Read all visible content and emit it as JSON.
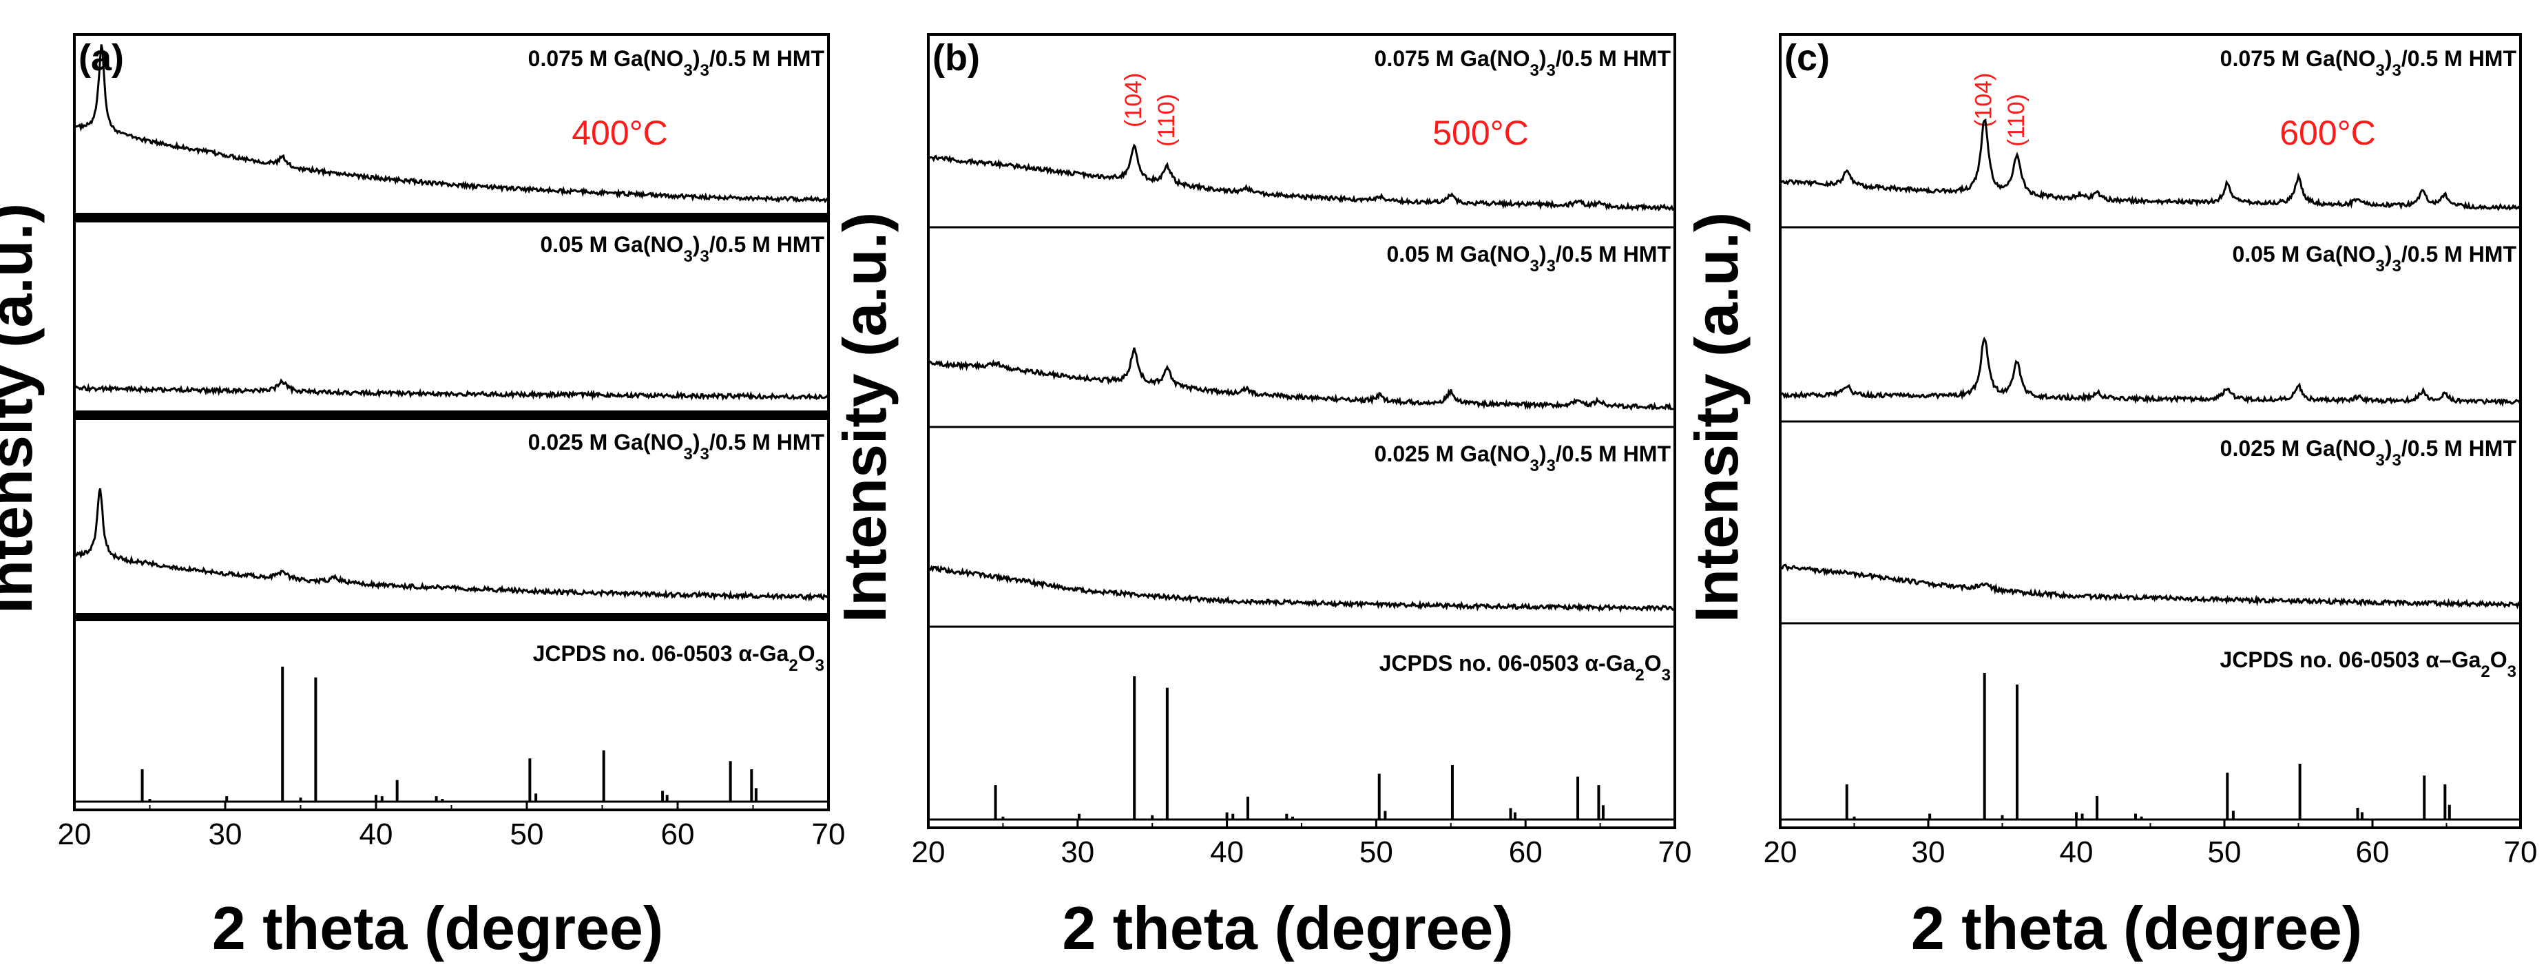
{
  "chart_data": [
    {
      "type": "line",
      "panel_label": "(a)",
      "temperature": "400°C",
      "xlabel": "2 theta (degree)",
      "ylabel": "Intensity (a.u.)",
      "xlim": [
        20,
        70
      ],
      "xticks": [
        "20",
        "30",
        "40",
        "50",
        "60",
        "70"
      ],
      "miller_labels": [],
      "series": [
        {
          "name": "0.075 M Ga(NO3)3/0.5 M HMT",
          "label_text": {
            "a": "0.075 M Ga(NO",
            "b": "3",
            "c": ")",
            "d": "3",
            "e": "/0.5 M HMT"
          },
          "base": [
            [
              20,
              0.68
            ],
            [
              22,
              0.65
            ],
            [
              25,
              0.56
            ],
            [
              30,
              0.44
            ],
            [
              35,
              0.32
            ],
            [
              40,
              0.24
            ],
            [
              45,
              0.18
            ],
            [
              50,
              0.14
            ],
            [
              55,
              0.11
            ],
            [
              60,
              0.08
            ],
            [
              65,
              0.06
            ],
            [
              70,
              0.05
            ]
          ],
          "peaks": [
            [
              21.8,
              0.75,
              0.22
            ],
            [
              33.8,
              0.08,
              0.25
            ]
          ]
        },
        {
          "name": "0.05 M Ga(NO3)3/0.5 M HMT",
          "label_text": {
            "a": "0.05 M Ga(NO",
            "b": "3",
            "c": ")",
            "d": "3",
            "e": "/0.5 M HMT"
          },
          "base": [
            [
              20,
              0.12
            ],
            [
              30,
              0.1
            ],
            [
              40,
              0.08
            ],
            [
              50,
              0.07
            ],
            [
              60,
              0.06
            ],
            [
              70,
              0.05
            ]
          ],
          "peaks": [
            [
              33.8,
              0.08,
              0.4
            ]
          ]
        },
        {
          "name": "0.025 M Ga(NO3)3/0.5 M HMT",
          "label_text": {
            "a": "0.025 M Ga(NO",
            "b": "3",
            "c": ")",
            "d": "3",
            "e": "/0.5 M HMT"
          },
          "base": [
            [
              20,
              0.4
            ],
            [
              22,
              0.38
            ],
            [
              25,
              0.33
            ],
            [
              30,
              0.25
            ],
            [
              35,
              0.2
            ],
            [
              40,
              0.16
            ],
            [
              50,
              0.11
            ],
            [
              60,
              0.08
            ],
            [
              70,
              0.06
            ]
          ],
          "peaks": [
            [
              21.7,
              0.55,
              0.22
            ],
            [
              33.8,
              0.06,
              0.3
            ],
            [
              37.3,
              0.04,
              0.3
            ]
          ]
        },
        {
          "name": "JCPDS no. 06-0503 α-Ga2O3",
          "label_text": {
            "a": "JCPDS no. 06-0503 α-Ga",
            "b": "2",
            "c": "O",
            "d": "3",
            "e": ""
          },
          "type": "stick",
          "sticks": [
            [
              24.5,
              0.24
            ],
            [
              25.0,
              0.02
            ],
            [
              30.1,
              0.04
            ],
            [
              33.8,
              1.0
            ],
            [
              35.0,
              0.03
            ],
            [
              36.0,
              0.92
            ],
            [
              40.0,
              0.05
            ],
            [
              40.4,
              0.04
            ],
            [
              41.4,
              0.16
            ],
            [
              44.0,
              0.04
            ],
            [
              44.4,
              0.02
            ],
            [
              50.2,
              0.32
            ],
            [
              50.6,
              0.06
            ],
            [
              55.1,
              0.38
            ],
            [
              59.0,
              0.08
            ],
            [
              59.3,
              0.05
            ],
            [
              63.5,
              0.3
            ],
            [
              64.9,
              0.24
            ],
            [
              65.2,
              0.1
            ]
          ]
        }
      ]
    },
    {
      "type": "line",
      "panel_label": "(b)",
      "temperature": "500°C",
      "xlabel": "2 theta (degree)",
      "ylabel": "Intensity (a.u.)",
      "xlim": [
        20,
        70
      ],
      "xticks": [
        "20",
        "30",
        "40",
        "50",
        "60",
        "70"
      ],
      "miller_labels": [
        {
          "text": "(104)",
          "x": 33.8
        },
        {
          "text": "(110)",
          "x": 36.0
        }
      ],
      "series": [
        {
          "name": "0.075 M Ga(NO3)3/0.5 M HMT",
          "label_text": {
            "a": "0.075 M Ga(NO",
            "b": "3",
            "c": ")",
            "d": "3",
            "e": "/0.5 M HMT"
          },
          "base": [
            [
              20,
              0.48
            ],
            [
              25,
              0.42
            ],
            [
              30,
              0.34
            ],
            [
              35,
              0.27
            ],
            [
              40,
              0.2
            ],
            [
              45,
              0.15
            ],
            [
              50,
              0.12
            ],
            [
              55,
              0.1
            ],
            [
              60,
              0.09
            ],
            [
              65,
              0.07
            ],
            [
              70,
              0.06
            ]
          ],
          "peaks": [
            [
              33.8,
              0.28,
              0.3
            ],
            [
              36.0,
              0.15,
              0.3
            ],
            [
              41.3,
              0.04,
              0.3
            ],
            [
              50.2,
              0.04,
              0.3
            ],
            [
              55.0,
              0.06,
              0.3
            ],
            [
              63.5,
              0.04,
              0.3
            ],
            [
              64.9,
              0.03,
              0.3
            ]
          ]
        },
        {
          "name": "0.05 M Ga(NO3)3/0.5 M HMT",
          "label_text": {
            "a": "0.05 M Ga(NO",
            "b": "3",
            "c": ")",
            "d": "3",
            "e": "/0.5 M HMT"
          },
          "base": [
            [
              20,
              0.42
            ],
            [
              25,
              0.38
            ],
            [
              30,
              0.3
            ],
            [
              35,
              0.24
            ],
            [
              40,
              0.18
            ],
            [
              45,
              0.14
            ],
            [
              50,
              0.11
            ],
            [
              55,
              0.09
            ],
            [
              60,
              0.08
            ],
            [
              65,
              0.07
            ],
            [
              70,
              0.06
            ]
          ],
          "peaks": [
            [
              24.5,
              0.04,
              0.4
            ],
            [
              33.8,
              0.28,
              0.3
            ],
            [
              36.0,
              0.15,
              0.3
            ],
            [
              41.3,
              0.04,
              0.3
            ],
            [
              50.2,
              0.05,
              0.3
            ],
            [
              55.0,
              0.1,
              0.3
            ],
            [
              63.5,
              0.05,
              0.3
            ],
            [
              64.9,
              0.04,
              0.3
            ]
          ]
        },
        {
          "name": "0.025 M Ga(NO3)3/0.5 M HMT",
          "label_text": {
            "a": "0.025 M Ga(NO",
            "b": "3",
            "c": ")",
            "d": "3",
            "e": "/0.5 M HMT"
          },
          "base": [
            [
              20,
              0.38
            ],
            [
              25,
              0.3
            ],
            [
              30,
              0.2
            ],
            [
              35,
              0.15
            ],
            [
              40,
              0.11
            ],
            [
              50,
              0.08
            ],
            [
              60,
              0.06
            ],
            [
              70,
              0.05
            ]
          ],
          "peaks": []
        },
        {
          "name": "JCPDS no. 06-0503 α-Ga2O3",
          "label_text": {
            "a": "JCPDS no. 06-0503 α-Ga",
            "b": "2",
            "c": "O",
            "d": "3",
            "e": ""
          },
          "type": "stick",
          "sticks": [
            [
              24.5,
              0.24
            ],
            [
              25.0,
              0.02
            ],
            [
              30.1,
              0.04
            ],
            [
              33.8,
              1.0
            ],
            [
              35.0,
              0.03
            ],
            [
              36.0,
              0.92
            ],
            [
              40.0,
              0.05
            ],
            [
              40.4,
              0.04
            ],
            [
              41.4,
              0.16
            ],
            [
              44.0,
              0.04
            ],
            [
              44.4,
              0.02
            ],
            [
              50.2,
              0.32
            ],
            [
              50.6,
              0.06
            ],
            [
              55.1,
              0.38
            ],
            [
              59.0,
              0.08
            ],
            [
              59.3,
              0.05
            ],
            [
              63.5,
              0.3
            ],
            [
              64.9,
              0.24
            ],
            [
              65.2,
              0.1
            ]
          ]
        }
      ]
    },
    {
      "type": "line",
      "panel_label": "(c)",
      "temperature": "600°C",
      "xlabel": "2 theta (degree)",
      "ylabel": "Intensity (a.u.)",
      "xlim": [
        20,
        70
      ],
      "xticks": [
        "20",
        "30",
        "40",
        "50",
        "60",
        "70"
      ],
      "miller_labels": [
        {
          "text": "(104)",
          "x": 33.8
        },
        {
          "text": "(110)",
          "x": 36.0
        }
      ],
      "series": [
        {
          "name": "0.075 M Ga(NO3)3/0.5 M HMT",
          "label_text": {
            "a": "0.075 M Ga(NO",
            "b": "3",
            "c": ")",
            "d": "3",
            "e": "/0.5 M HMT"
          },
          "base": [
            [
              20,
              0.28
            ],
            [
              25,
              0.24
            ],
            [
              30,
              0.2
            ],
            [
              35,
              0.17
            ],
            [
              40,
              0.13
            ],
            [
              45,
              0.11
            ],
            [
              50,
              0.1
            ],
            [
              55,
              0.09
            ],
            [
              60,
              0.08
            ],
            [
              65,
              0.07
            ],
            [
              70,
              0.06
            ]
          ],
          "peaks": [
            [
              24.5,
              0.12,
              0.3
            ],
            [
              33.8,
              0.62,
              0.3
            ],
            [
              36.0,
              0.34,
              0.3
            ],
            [
              40.2,
              0.04,
              0.3
            ],
            [
              41.4,
              0.06,
              0.3
            ],
            [
              50.2,
              0.16,
              0.3
            ],
            [
              55.0,
              0.22,
              0.3
            ],
            [
              59.0,
              0.05,
              0.3
            ],
            [
              63.4,
              0.12,
              0.3
            ],
            [
              64.9,
              0.09,
              0.3
            ]
          ]
        },
        {
          "name": "0.05 M Ga(NO3)3/0.5 M HMT",
          "label_text": {
            "a": "0.05 M Ga(NO",
            "b": "3",
            "c": ")",
            "d": "3",
            "e": "/0.5 M HMT"
          },
          "base": [
            [
              20,
              0.12
            ],
            [
              30,
              0.11
            ],
            [
              40,
              0.09
            ],
            [
              50,
              0.08
            ],
            [
              60,
              0.07
            ],
            [
              70,
              0.06
            ]
          ],
          "peaks": [
            [
              24.5,
              0.08,
              0.3
            ],
            [
              33.8,
              0.5,
              0.3
            ],
            [
              36.0,
              0.3,
              0.3
            ],
            [
              41.4,
              0.05,
              0.3
            ],
            [
              50.2,
              0.1,
              0.3
            ],
            [
              55.0,
              0.12,
              0.3
            ],
            [
              59.0,
              0.03,
              0.3
            ],
            [
              63.4,
              0.08,
              0.3
            ],
            [
              64.9,
              0.06,
              0.3
            ]
          ]
        },
        {
          "name": "0.025 M Ga(NO3)3/0.5 M HMT",
          "label_text": {
            "a": "0.025 M Ga(NO",
            "b": "3",
            "c": ")",
            "d": "3",
            "e": "/0.5 M HMT"
          },
          "base": [
            [
              20,
              0.36
            ],
            [
              25,
              0.3
            ],
            [
              30,
              0.22
            ],
            [
              35,
              0.16
            ],
            [
              40,
              0.12
            ],
            [
              50,
              0.09
            ],
            [
              60,
              0.07
            ],
            [
              70,
              0.05
            ]
          ],
          "peaks": [
            [
              33.8,
              0.05,
              0.4
            ]
          ]
        },
        {
          "name": "JCPDS no. 06-0503 α-Ga2O3",
          "label_text": {
            "a": "JCPDS no. 06-0503 α–Ga",
            "b": "2",
            "c": "O",
            "d": "3",
            "e": ""
          },
          "type": "stick",
          "sticks": [
            [
              24.5,
              0.24
            ],
            [
              25.0,
              0.02
            ],
            [
              30.1,
              0.04
            ],
            [
              33.8,
              1.0
            ],
            [
              35.0,
              0.03
            ],
            [
              36.0,
              0.92
            ],
            [
              40.0,
              0.05
            ],
            [
              40.4,
              0.04
            ],
            [
              41.4,
              0.16
            ],
            [
              44.0,
              0.04
            ],
            [
              44.4,
              0.02
            ],
            [
              50.2,
              0.32
            ],
            [
              50.6,
              0.06
            ],
            [
              55.1,
              0.38
            ],
            [
              59.0,
              0.08
            ],
            [
              59.3,
              0.05
            ],
            [
              63.5,
              0.3
            ],
            [
              64.9,
              0.24
            ],
            [
              65.2,
              0.1
            ]
          ]
        }
      ]
    }
  ]
}
